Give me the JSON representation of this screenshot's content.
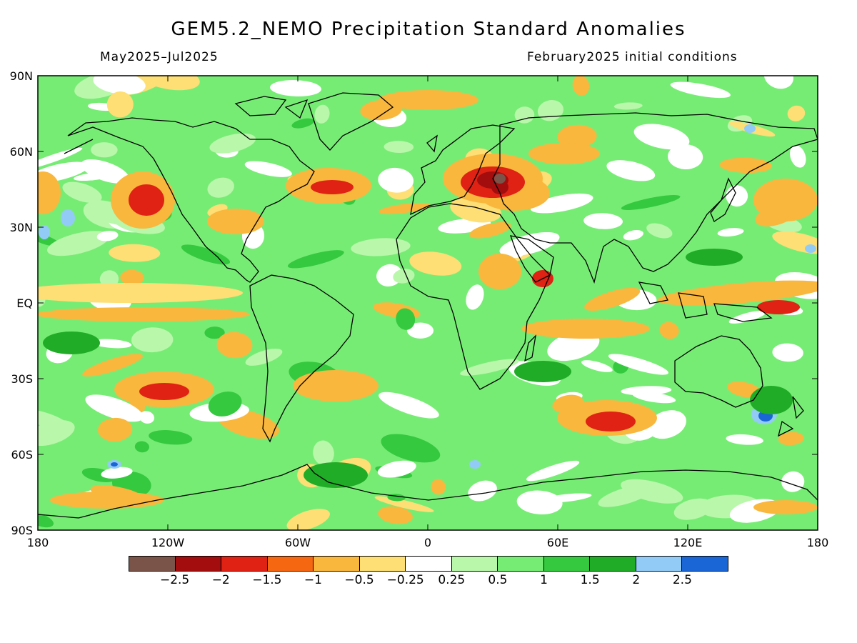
{
  "title": "GEM5.2_NEMO Precipitation Standard Anomalies",
  "period": "May2025–Jul2025",
  "init": "February2025 initial conditions",
  "lat_labels": [
    "90N",
    "60N",
    "30N",
    "EQ",
    "30S",
    "60S",
    "90S"
  ],
  "lon_labels": [
    "180",
    "120W",
    "60W",
    "0",
    "60E",
    "120E",
    "180"
  ],
  "colorbar": {
    "colors": [
      "#7b5449",
      "#a30d0d",
      "#df2214",
      "#f56711",
      "#f9b73d",
      "#fddf75",
      "#ffffff",
      "#b9f7ab",
      "#77ec75",
      "#35c93f",
      "#20ac26",
      "#92ccf6",
      "#1b66d6"
    ],
    "labels": [
      "−2.5",
      "−2",
      "−1.5",
      "−1",
      "−0.5",
      "−0.25",
      "0.25",
      "0.5",
      "1",
      "1.5",
      "2",
      "2.5"
    ]
  },
  "colors": {
    "land_outline": "#000000",
    "frame": "#000000"
  }
}
